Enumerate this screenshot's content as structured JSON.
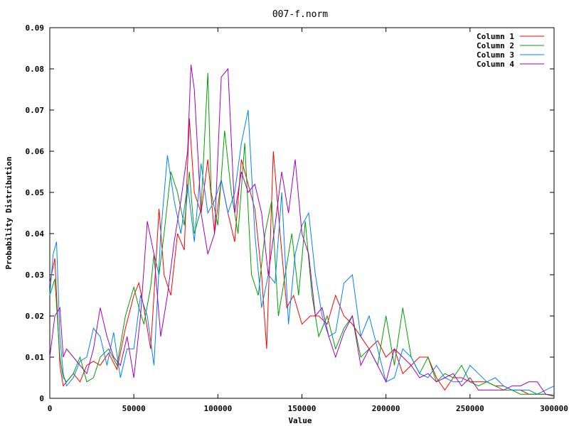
{
  "chart_data": {
    "type": "line",
    "title": "007-f.norm",
    "xlabel": "Value",
    "ylabel": "Probability Distribution",
    "xlim": [
      0,
      300000
    ],
    "ylim": [
      0,
      0.09
    ],
    "x_ticks": [
      0,
      50000,
      100000,
      150000,
      200000,
      250000,
      300000
    ],
    "x_tick_labels": [
      "0",
      "50000",
      "100000",
      "150000",
      "200000",
      "250000",
      "300000"
    ],
    "y_ticks": [
      0,
      0.01,
      0.02,
      0.03,
      0.04,
      0.05,
      0.06,
      0.07,
      0.08,
      0.09
    ],
    "y_tick_labels": [
      "0",
      "0.01",
      "0.02",
      "0.03",
      "0.04",
      "0.05",
      "0.06",
      "0.07",
      "0.08",
      "0.09"
    ],
    "grid": false,
    "legend_position": "top-right",
    "series": [
      {
        "name": "Column 1",
        "color": "#ff0000",
        "x": [
          0,
          3000,
          6000,
          8000,
          10000,
          14000,
          18000,
          22000,
          26000,
          30000,
          35000,
          40000,
          45000,
          50000,
          53000,
          56000,
          60000,
          62000,
          65000,
          68000,
          72000,
          76000,
          80000,
          83000,
          86000,
          90000,
          94000,
          98000,
          102000,
          106000,
          110000,
          114000,
          118000,
          122000,
          126000,
          129000,
          133000,
          137000,
          141000,
          145000,
          150000,
          155000,
          160000,
          165000,
          170000,
          175000,
          180000,
          185000,
          190000,
          195000,
          200000,
          205000,
          210000,
          215000,
          220000,
          225000,
          230000,
          235000,
          240000,
          245000,
          250000,
          255000,
          260000,
          265000,
          270000,
          275000,
          280000,
          285000,
          290000,
          295000,
          300000
        ],
        "y": [
          0.028,
          0.034,
          0.008,
          0.003,
          0.004,
          0.006,
          0.004,
          0.008,
          0.009,
          0.008,
          0.011,
          0.007,
          0.017,
          0.025,
          0.028,
          0.022,
          0.012,
          0.025,
          0.046,
          0.03,
          0.025,
          0.04,
          0.036,
          0.068,
          0.05,
          0.045,
          0.058,
          0.04,
          0.053,
          0.045,
          0.038,
          0.058,
          0.052,
          0.046,
          0.03,
          0.012,
          0.06,
          0.04,
          0.022,
          0.025,
          0.018,
          0.02,
          0.02,
          0.018,
          0.025,
          0.02,
          0.018,
          0.015,
          0.012,
          0.014,
          0.01,
          0.012,
          0.006,
          0.008,
          0.01,
          0.01,
          0.005,
          0.002,
          0.005,
          0.005,
          0.004,
          0.004,
          0.004,
          0.003,
          0.003,
          0.002,
          0.002,
          0.001,
          0.001,
          0.001,
          0.0005
        ]
      },
      {
        "name": "Column 2",
        "color": "#00a000",
        "x": [
          0,
          3000,
          6000,
          8000,
          10000,
          14000,
          18000,
          22000,
          26000,
          30000,
          35000,
          40000,
          45000,
          50000,
          53000,
          56000,
          60000,
          62000,
          65000,
          68000,
          72000,
          76000,
          80000,
          83000,
          86000,
          90000,
          94000,
          96000,
          100000,
          104000,
          108000,
          112000,
          116000,
          120000,
          124000,
          128000,
          132000,
          136000,
          140000,
          144000,
          148000,
          152000,
          156000,
          160000,
          165000,
          170000,
          175000,
          180000,
          185000,
          190000,
          195000,
          200000,
          205000,
          210000,
          215000,
          220000,
          225000,
          230000,
          235000,
          240000,
          245000,
          250000,
          255000,
          260000,
          265000,
          270000,
          275000,
          280000,
          285000,
          290000,
          295000,
          300000
        ],
        "y": [
          0.025,
          0.029,
          0.01,
          0.005,
          0.004,
          0.006,
          0.01,
          0.004,
          0.005,
          0.01,
          0.012,
          0.008,
          0.02,
          0.027,
          0.022,
          0.018,
          0.027,
          0.035,
          0.03,
          0.04,
          0.055,
          0.05,
          0.042,
          0.055,
          0.04,
          0.046,
          0.079,
          0.05,
          0.042,
          0.065,
          0.05,
          0.04,
          0.062,
          0.03,
          0.025,
          0.04,
          0.048,
          0.02,
          0.03,
          0.04,
          0.025,
          0.043,
          0.025,
          0.015,
          0.02,
          0.012,
          0.017,
          0.02,
          0.01,
          0.012,
          0.008,
          0.02,
          0.008,
          0.022,
          0.01,
          0.006,
          0.01,
          0.004,
          0.006,
          0.005,
          0.008,
          0.004,
          0.003,
          0.004,
          0.003,
          0.002,
          0.002,
          0.001,
          0.001,
          0.001,
          0.001,
          0.0008
        ]
      },
      {
        "name": "Column 3",
        "color": "#0080ff",
        "x": [
          0,
          2000,
          4000,
          6000,
          8000,
          10000,
          14000,
          18000,
          22000,
          26000,
          30000,
          34000,
          38000,
          42000,
          46000,
          50000,
          54000,
          58000,
          62000,
          66000,
          70000,
          74000,
          78000,
          82000,
          86000,
          90000,
          94000,
          98000,
          102000,
          106000,
          110000,
          114000,
          118000,
          122000,
          126000,
          130000,
          134000,
          138000,
          142000,
          146000,
          150000,
          154000,
          158000,
          162000,
          166000,
          170000,
          175000,
          180000,
          185000,
          190000,
          195000,
          200000,
          205000,
          210000,
          215000,
          220000,
          225000,
          230000,
          235000,
          240000,
          245000,
          250000,
          255000,
          260000,
          265000,
          270000,
          275000,
          280000,
          285000,
          290000,
          295000,
          300000
        ],
        "y": [
          0.025,
          0.035,
          0.038,
          0.015,
          0.006,
          0.003,
          0.005,
          0.009,
          0.01,
          0.017,
          0.015,
          0.008,
          0.016,
          0.005,
          0.012,
          0.012,
          0.025,
          0.02,
          0.008,
          0.04,
          0.059,
          0.048,
          0.04,
          0.052,
          0.038,
          0.057,
          0.045,
          0.048,
          0.053,
          0.045,
          0.05,
          0.062,
          0.07,
          0.04,
          0.022,
          0.03,
          0.028,
          0.05,
          0.018,
          0.035,
          0.042,
          0.045,
          0.03,
          0.02,
          0.015,
          0.016,
          0.028,
          0.03,
          0.015,
          0.02,
          0.012,
          0.004,
          0.005,
          0.012,
          0.01,
          0.006,
          0.005,
          0.008,
          0.005,
          0.004,
          0.004,
          0.008,
          0.006,
          0.004,
          0.005,
          0.003,
          0.002,
          0.002,
          0.002,
          0.001,
          0.002,
          0.003
        ]
      },
      {
        "name": "Column 4",
        "color": "#a000c0",
        "x": [
          0,
          3000,
          6000,
          8000,
          10000,
          14000,
          18000,
          22000,
          26000,
          30000,
          34000,
          38000,
          42000,
          46000,
          50000,
          54000,
          58000,
          62000,
          66000,
          70000,
          74000,
          78000,
          82000,
          84000,
          86000,
          90000,
          94000,
          98000,
          102000,
          106000,
          110000,
          114000,
          118000,
          122000,
          126000,
          130000,
          134000,
          138000,
          142000,
          146000,
          150000,
          154000,
          158000,
          162000,
          166000,
          170000,
          175000,
          180000,
          185000,
          190000,
          195000,
          200000,
          205000,
          210000,
          215000,
          220000,
          225000,
          230000,
          235000,
          240000,
          245000,
          250000,
          255000,
          260000,
          265000,
          270000,
          275000,
          280000,
          285000,
          290000,
          295000,
          300000
        ],
        "y": [
          0.01,
          0.02,
          0.022,
          0.01,
          0.012,
          0.01,
          0.008,
          0.006,
          0.012,
          0.022,
          0.015,
          0.01,
          0.008,
          0.015,
          0.005,
          0.02,
          0.043,
          0.035,
          0.015,
          0.025,
          0.038,
          0.048,
          0.06,
          0.081,
          0.075,
          0.045,
          0.035,
          0.04,
          0.078,
          0.08,
          0.045,
          0.055,
          0.05,
          0.052,
          0.045,
          0.03,
          0.042,
          0.055,
          0.045,
          0.058,
          0.04,
          0.035,
          0.02,
          0.022,
          0.015,
          0.01,
          0.016,
          0.02,
          0.008,
          0.012,
          0.008,
          0.004,
          0.012,
          0.01,
          0.008,
          0.005,
          0.006,
          0.004,
          0.005,
          0.006,
          0.003,
          0.005,
          0.002,
          0.002,
          0.002,
          0.002,
          0.003,
          0.003,
          0.004,
          0.004,
          0.001,
          0.0005
        ]
      }
    ]
  }
}
